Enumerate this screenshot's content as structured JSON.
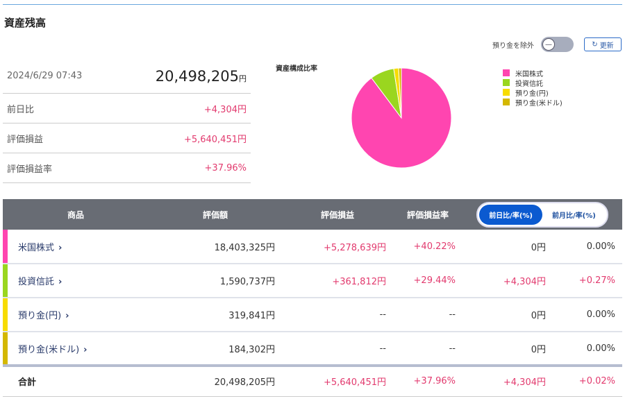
{
  "page_title": "資産残高",
  "summary": {
    "date": "2024/6/29 07:43",
    "total": "20,498,205",
    "yen_unit": "円",
    "rows": [
      {
        "label": "前日比",
        "value": "+4,304円"
      },
      {
        "label": "評価損益",
        "value": "+5,640,451円"
      },
      {
        "label": "評価損益率",
        "value": "+37.96%"
      }
    ]
  },
  "controls": {
    "exclude_deposit_label": "預り金を除外",
    "exclude_deposit_on": false,
    "refresh_label": "更新"
  },
  "chart_data": {
    "type": "pie",
    "title": "資産構成比率",
    "legend_position": "right",
    "categories": [
      "米国株式",
      "投資信託",
      "預り金(円)",
      "預り金(米ドル)"
    ],
    "values": [
      18403325,
      1590737,
      319841,
      184302
    ],
    "colors": [
      "#ff45b0",
      "#9ad61f",
      "#f7dc00",
      "#d4b800"
    ]
  },
  "table": {
    "headers": [
      "商品",
      "評価額",
      "評価損益",
      "評価損益率"
    ],
    "toggle": {
      "daily": "前日比/率(%)",
      "monthly": "前月比/率(%)",
      "selected": "daily"
    },
    "rows": [
      {
        "name": "米国株式",
        "value": "18,403,325円",
        "pl": "+5,278,639円",
        "pl_rate": "+40.22%",
        "diff": "0円",
        "diff_rate": "0.00%",
        "color": "#ff45b0"
      },
      {
        "name": "投資信託",
        "value": "1,590,737円",
        "pl": "+361,812円",
        "pl_rate": "+29.44%",
        "diff": "+4,304円",
        "diff_rate": "+0.27%",
        "color": "#9ad61f"
      },
      {
        "name": "預り金(円)",
        "value": "319,841円",
        "pl": "--",
        "pl_rate": "--",
        "diff": "0円",
        "diff_rate": "0.00%",
        "color": "#f7dc00"
      },
      {
        "name": "預り金(米ドル)",
        "value": "184,302円",
        "pl": "--",
        "pl_rate": "--",
        "diff": "0円",
        "diff_rate": "0.00%",
        "color": "#d4b800"
      }
    ],
    "total": {
      "name": "合計",
      "value": "20,498,205円",
      "pl": "+5,640,451円",
      "pl_rate": "+37.96%",
      "diff": "+4,304円",
      "diff_rate": "+0.02%"
    }
  }
}
